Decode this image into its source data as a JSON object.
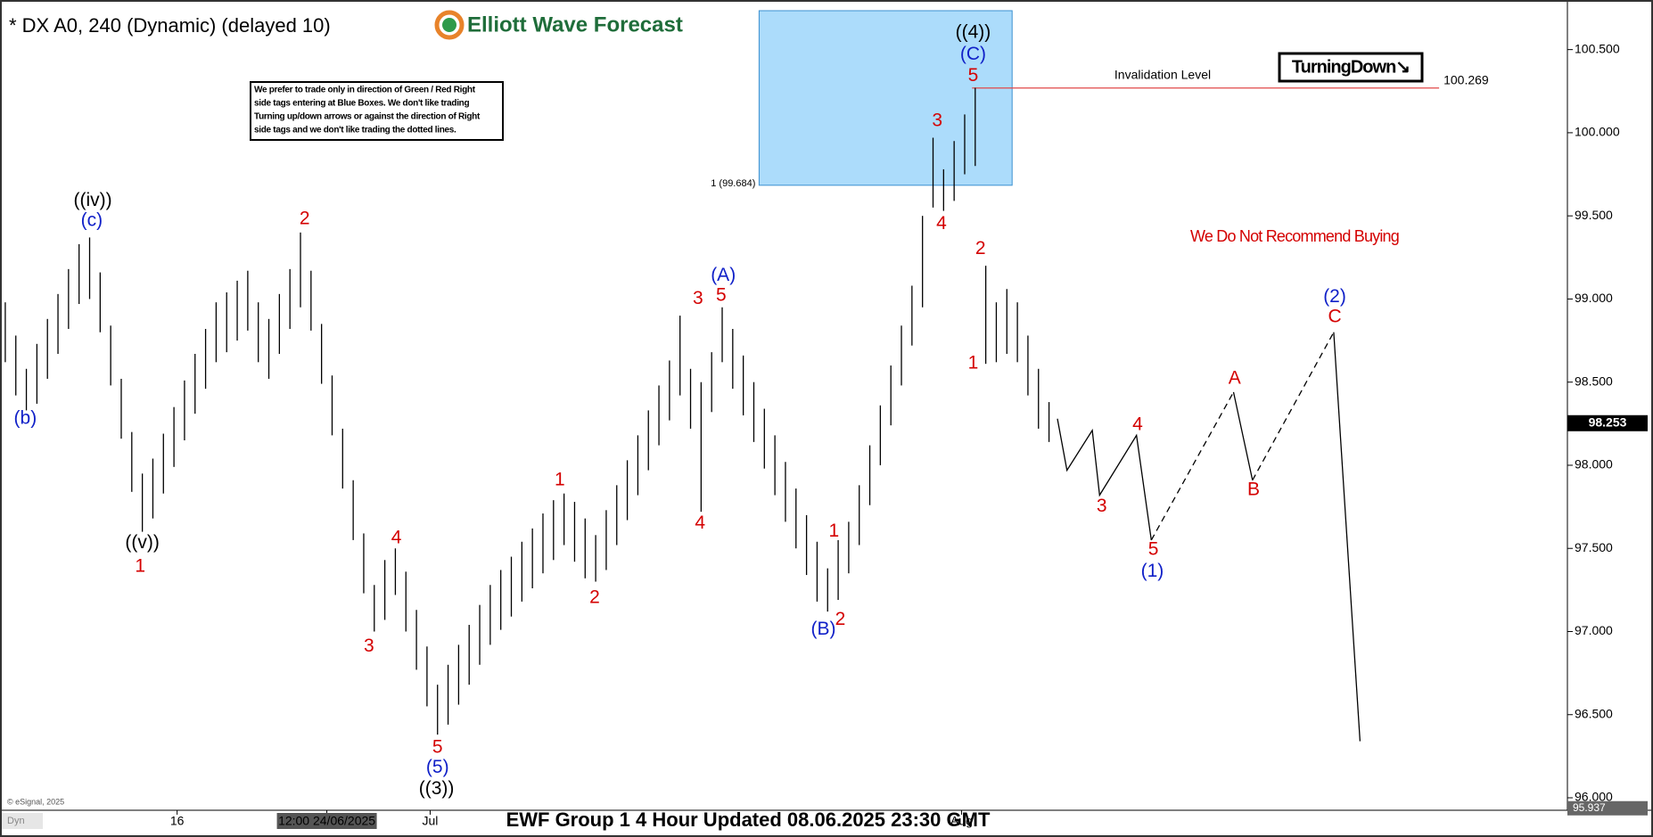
{
  "chart_data": {
    "type": "ohlc",
    "title": "* DX A0, 240 (Dynamic) (delayed 10)",
    "brand": "Elliott Wave Forecast",
    "note_lines": [
      "We prefer to trade only in direction of Green / Red Right",
      "side tags entering at Blue Boxes. We don't like trading",
      "Turning up/down arrows or against the direction of Right",
      "side tags and we don't like trading the dotted lines."
    ],
    "badge": "TurningDown↘",
    "warning": "We Do Not Recommend Buying",
    "footer": "EWF Group 1 4 Hour Updated 08.06.2025 23:30 GMT",
    "copyright": "© eSignal, 2025",
    "corner_tag": "Dyn",
    "xlim": [
      -0.5,
      148
    ],
    "ylim": [
      95.925,
      100.734
    ],
    "yticks": [
      {
        "value": 100.5,
        "label": "100.500"
      },
      {
        "value": 100,
        "label": "100.000"
      },
      {
        "value": 99.5,
        "label": "99.500"
      },
      {
        "value": 99,
        "label": "99.000"
      },
      {
        "value": 98.5,
        "label": "98.500"
      },
      {
        "value": 98,
        "label": "98.000"
      },
      {
        "value": 97.5,
        "label": "97.500"
      },
      {
        "value": 97,
        "label": "97.000"
      },
      {
        "value": 96.5,
        "label": "96.500"
      },
      {
        "value": 96,
        "label": "96.000"
      }
    ],
    "xticks": [
      {
        "value": 16.3,
        "label": "16"
      },
      {
        "value": 30.5,
        "label": "12:00 24/06/2025"
      },
      {
        "value": 40.3,
        "label": "Jul"
      },
      {
        "value": 90.7,
        "label": "Aug"
      }
    ],
    "bar_color": "#000000",
    "bars": {
      "x": [
        0,
        1,
        2,
        3,
        4,
        5,
        6,
        7,
        8,
        9,
        10,
        11,
        12,
        13,
        14,
        15,
        16,
        17,
        18,
        19,
        20,
        21,
        22,
        23,
        24,
        25,
        26,
        27,
        28,
        29,
        30,
        31,
        32,
        33,
        34,
        35,
        36,
        37,
        38,
        39,
        40,
        41,
        42,
        43,
        44,
        45,
        46,
        47,
        48,
        49,
        50,
        51,
        52,
        53,
        54,
        55,
        56,
        57,
        58,
        59,
        60,
        61,
        62,
        63,
        64,
        65,
        66,
        67,
        68,
        69,
        70,
        71,
        72,
        73,
        74,
        75,
        76,
        77,
        78,
        79,
        80,
        81,
        82,
        83,
        84,
        85,
        86,
        87,
        88,
        89,
        90,
        91,
        92,
        93,
        94,
        95,
        96,
        97,
        98,
        99
      ],
      "high": [
        98.98,
        98.78,
        98.58,
        98.73,
        98.88,
        99.03,
        99.18,
        99.33,
        99.37,
        99.16,
        98.84,
        98.52,
        98.2,
        97.95,
        98.04,
        98.19,
        98.35,
        98.51,
        98.67,
        98.82,
        98.98,
        99.04,
        99.11,
        99.17,
        98.98,
        98.88,
        99.03,
        99.18,
        99.4,
        99.17,
        98.85,
        98.54,
        98.22,
        97.91,
        97.59,
        97.28,
        97.43,
        97.5,
        97.36,
        97.13,
        96.91,
        96.68,
        96.8,
        96.92,
        97.04,
        97.16,
        97.28,
        97.37,
        97.45,
        97.54,
        97.62,
        97.71,
        97.79,
        97.83,
        97.78,
        97.68,
        97.58,
        97.73,
        97.88,
        98.03,
        98.18,
        98.33,
        98.48,
        98.63,
        98.9,
        98.58,
        98.5,
        98.68,
        98.95,
        98.82,
        98.66,
        98.5,
        98.34,
        98.18,
        98.02,
        97.86,
        97.7,
        97.54,
        97.38,
        97.55,
        97.66,
        97.88,
        98.12,
        98.36,
        98.6,
        98.84,
        99.08,
        99.5,
        99.97,
        99.78,
        99.95,
        100.11,
        100.27,
        99.2,
        98.98,
        99.06,
        98.98,
        98.78,
        98.58,
        98.38
      ],
      "low": [
        98.62,
        98.42,
        98.33,
        98.37,
        98.52,
        98.67,
        98.82,
        98.97,
        99.0,
        98.8,
        98.48,
        98.16,
        97.84,
        97.6,
        97.68,
        97.83,
        97.99,
        98.15,
        98.31,
        98.46,
        98.62,
        98.68,
        98.75,
        98.81,
        98.62,
        98.52,
        98.67,
        98.82,
        98.95,
        98.81,
        98.49,
        98.18,
        97.86,
        97.55,
        97.23,
        97.0,
        97.07,
        97.22,
        97.0,
        96.77,
        96.55,
        96.38,
        96.44,
        96.56,
        96.68,
        96.8,
        96.92,
        97.01,
        97.09,
        97.18,
        97.26,
        97.35,
        97.43,
        97.52,
        97.42,
        97.32,
        97.3,
        97.37,
        97.52,
        97.67,
        97.82,
        97.97,
        98.12,
        98.27,
        98.42,
        98.22,
        97.72,
        98.32,
        98.62,
        98.46,
        98.3,
        98.14,
        97.98,
        97.82,
        97.66,
        97.5,
        97.34,
        97.18,
        97.12,
        97.19,
        97.35,
        97.52,
        97.76,
        98.0,
        98.24,
        98.48,
        98.72,
        98.95,
        99.55,
        99.53,
        99.59,
        99.75,
        99.8,
        98.61,
        98.62,
        98.67,
        98.62,
        98.42,
        98.22,
        98.14
      ]
    },
    "projection": [
      {
        "style": "solid",
        "color": "#000000",
        "x": [
          99.8,
          100.7,
          103.1,
          103.8,
          107.3,
          108.7,
          null,
          116.5,
          118.3,
          null,
          126,
          128.5
        ],
        "values": [
          98.28,
          97.97,
          98.21,
          97.82,
          98.18,
          97.55,
          null,
          98.44,
          97.91,
          null,
          98.8,
          96.34
        ]
      },
      {
        "style": "dashed",
        "color": "#000000",
        "x": [
          108.7,
          116.5,
          null,
          118.3,
          126
        ],
        "values": [
          97.55,
          98.44,
          null,
          97.91,
          98.8
        ]
      }
    ],
    "box": {
      "label": "1 (99.684)",
      "x": [
        71.5,
        95.5
      ],
      "ylim": [
        99.684,
        100.734
      ],
      "color": "#acdcfb"
    },
    "invalidation": {
      "label": "Invalidation Level",
      "value": 100.269,
      "x": [
        91.7,
        136
      ],
      "color": "#e04848"
    },
    "last_price": 98.253,
    "low_tag": 95.937,
    "wave_labels": [
      {
        "text": "((iv))",
        "x": 8.3,
        "y": 99.59,
        "color": "#000000"
      },
      {
        "text": "(c)",
        "x": 8.2,
        "y": 99.47,
        "color": "#1020c8"
      },
      {
        "text": "(b)",
        "x": 1.9,
        "y": 98.28,
        "color": "#1020c8"
      },
      {
        "text": "((v))",
        "x": 13,
        "y": 97.53,
        "color": "#000000"
      },
      {
        "text": "1",
        "x": 12.8,
        "y": 97.39,
        "color": "#d40000"
      },
      {
        "text": "2",
        "x": 28.4,
        "y": 99.48,
        "color": "#d40000"
      },
      {
        "text": "3",
        "x": 34.5,
        "y": 96.91,
        "color": "#d40000"
      },
      {
        "text": "4",
        "x": 37.1,
        "y": 97.56,
        "color": "#d40000"
      },
      {
        "text": "5",
        "x": 41,
        "y": 96.3,
        "color": "#d40000"
      },
      {
        "text": "(5)",
        "x": 41,
        "y": 96.18,
        "color": "#1020c8"
      },
      {
        "text": "((3))",
        "x": 40.9,
        "y": 96.05,
        "color": "#000000"
      },
      {
        "text": "1",
        "x": 52.6,
        "y": 97.91,
        "color": "#d40000"
      },
      {
        "text": "2",
        "x": 55.9,
        "y": 97.2,
        "color": "#d40000"
      },
      {
        "text": "3",
        "x": 65.7,
        "y": 99.0,
        "color": "#d40000"
      },
      {
        "text": "4",
        "x": 65.9,
        "y": 97.65,
        "color": "#d40000"
      },
      {
        "text": "5",
        "x": 67.9,
        "y": 99.02,
        "color": "#d40000"
      },
      {
        "text": "(A)",
        "x": 68.1,
        "y": 99.14,
        "color": "#1020c8"
      },
      {
        "text": "1",
        "x": 78.6,
        "y": 97.6,
        "color": "#d40000"
      },
      {
        "text": "2",
        "x": 79.2,
        "y": 97.07,
        "color": "#d40000"
      },
      {
        "text": "(B)",
        "x": 77.6,
        "y": 97.01,
        "color": "#1020c8"
      },
      {
        "text": "3",
        "x": 88.4,
        "y": 100.07,
        "color": "#d40000"
      },
      {
        "text": "4",
        "x": 88.8,
        "y": 99.45,
        "color": "#d40000"
      },
      {
        "text": "5",
        "x": 91.8,
        "y": 100.34,
        "color": "#d40000"
      },
      {
        "text": "(C)",
        "x": 91.8,
        "y": 100.47,
        "color": "#1020c8"
      },
      {
        "text": "((4))",
        "x": 91.8,
        "y": 100.6,
        "color": "#000000"
      },
      {
        "text": "2",
        "x": 92.5,
        "y": 99.3,
        "color": "#d40000"
      },
      {
        "text": "1",
        "x": 91.8,
        "y": 98.61,
        "color": "#d40000"
      },
      {
        "text": "3",
        "x": 104,
        "y": 97.75,
        "color": "#d40000"
      },
      {
        "text": "4",
        "x": 107.4,
        "y": 98.24,
        "color": "#d40000"
      },
      {
        "text": "5",
        "x": 108.9,
        "y": 97.49,
        "color": "#d40000"
      },
      {
        "text": "(1)",
        "x": 108.8,
        "y": 97.36,
        "color": "#1020c8"
      },
      {
        "text": "A",
        "x": 116.6,
        "y": 98.52,
        "color": "#d40000"
      },
      {
        "text": "B",
        "x": 118.4,
        "y": 97.85,
        "color": "#d40000"
      },
      {
        "text": "C",
        "x": 126.1,
        "y": 98.89,
        "color": "#d40000"
      },
      {
        "text": "(2)",
        "x": 126.1,
        "y": 99.01,
        "color": "#1020c8"
      }
    ]
  }
}
